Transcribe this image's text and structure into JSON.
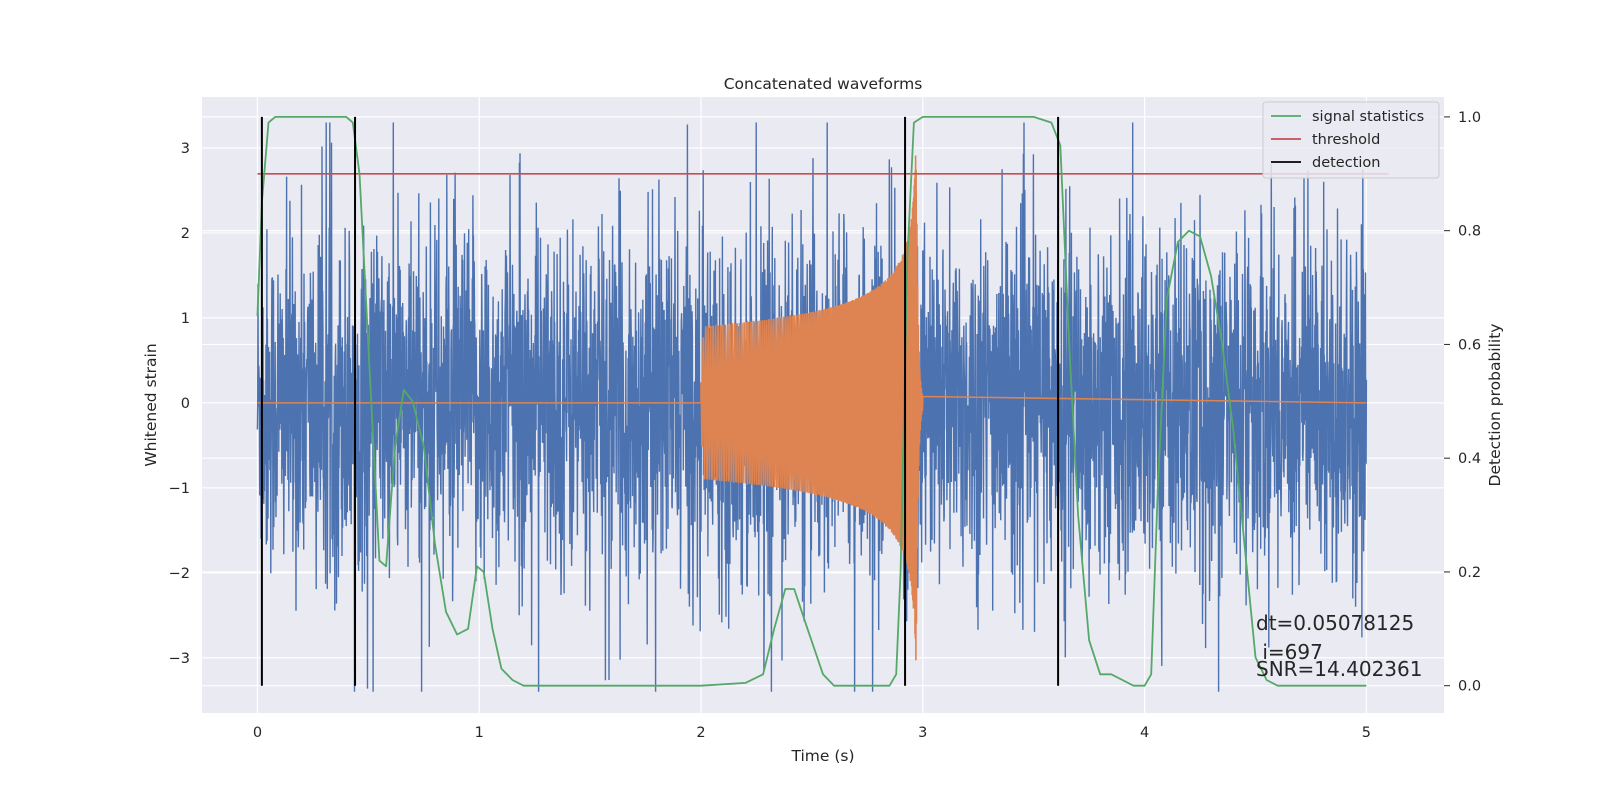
{
  "chart_data": {
    "type": "line",
    "title": "Concatenated waveforms",
    "xlabel": "Time (s)",
    "ylabel": "Whitened strain",
    "y2label": "Detection probability",
    "xlim": [
      -0.25,
      5.35
    ],
    "ylim": [
      -3.65,
      3.6
    ],
    "y2lim": [
      -0.048,
      1.035
    ],
    "xticks": [
      0,
      1,
      2,
      3,
      4,
      5
    ],
    "yticks": [
      -3,
      -2,
      -1,
      0,
      1,
      2,
      3
    ],
    "y2ticks": [
      0.0,
      0.2,
      0.4,
      0.6,
      0.8,
      1.0
    ],
    "grid": true,
    "legend_position": "top-right",
    "legend": [
      "signal statistics",
      "threshold",
      "detection"
    ],
    "colors": {
      "noise": "#4c72b0",
      "waveform": "#dd8452",
      "signal_statistics": "#55a868",
      "threshold": "#c44e52",
      "detection": "#000000",
      "background": "#eaeaf2",
      "grid": "#ffffff"
    },
    "series": [
      {
        "name": "signal statistics",
        "axis": "right",
        "x": [
          0.0,
          0.02,
          0.05,
          0.08,
          0.12,
          0.2,
          0.3,
          0.4,
          0.43,
          0.46,
          0.5,
          0.55,
          0.58,
          0.62,
          0.66,
          0.7,
          0.75,
          0.8,
          0.85,
          0.9,
          0.95,
          0.99,
          1.02,
          1.06,
          1.1,
          1.15,
          1.2,
          1.3,
          1.5,
          1.8,
          2.0,
          2.2,
          2.28,
          2.33,
          2.38,
          2.42,
          2.48,
          2.55,
          2.6,
          2.7,
          2.85,
          2.88,
          2.9,
          2.93,
          2.96,
          3.0,
          3.2,
          3.5,
          3.58,
          3.62,
          3.66,
          3.7,
          3.75,
          3.8,
          3.85,
          3.9,
          3.95,
          4.0,
          4.03,
          4.06,
          4.1,
          4.15,
          4.2,
          4.25,
          4.3,
          4.35,
          4.4,
          4.45,
          4.5,
          4.55,
          4.6,
          4.8,
          5.0
        ],
        "y": [
          0.65,
          0.85,
          0.99,
          1.0,
          1.0,
          1.0,
          1.0,
          1.0,
          0.99,
          0.9,
          0.6,
          0.22,
          0.21,
          0.42,
          0.52,
          0.5,
          0.42,
          0.25,
          0.13,
          0.09,
          0.1,
          0.21,
          0.2,
          0.1,
          0.03,
          0.01,
          0.0,
          0.0,
          0.0,
          0.0,
          0.0,
          0.005,
          0.02,
          0.1,
          0.17,
          0.17,
          0.1,
          0.02,
          0.0,
          0.0,
          0.0,
          0.02,
          0.2,
          0.75,
          0.99,
          1.0,
          1.0,
          1.0,
          0.99,
          0.95,
          0.6,
          0.3,
          0.08,
          0.02,
          0.02,
          0.01,
          0.0,
          0.0,
          0.02,
          0.35,
          0.68,
          0.78,
          0.8,
          0.79,
          0.72,
          0.6,
          0.45,
          0.25,
          0.05,
          0.01,
          0.0,
          0.0,
          0.0
        ]
      },
      {
        "name": "threshold",
        "axis": "right",
        "x": [
          0.0,
          5.1
        ],
        "y": [
          0.9,
          0.9
        ]
      },
      {
        "name": "detection",
        "axis": "right",
        "x": [
          0.02,
          0.44,
          2.92,
          3.61
        ],
        "ymin": 0.0,
        "ymax": 1.0
      },
      {
        "axis": "left",
        "x": [
          0.0,
          5.0
        ],
        "noise_amplitude": 2.4
      },
      {
        "axis": "left",
        "x": [
          2.0,
          3.0
        ],
        "peak_time": 2.97,
        "peak_amplitude": 3.2
      }
    ],
    "annotations": {
      "line1": "dt=0.05078125",
      "line2": " i=697",
      "line3": "SNR=14.402361"
    }
  }
}
